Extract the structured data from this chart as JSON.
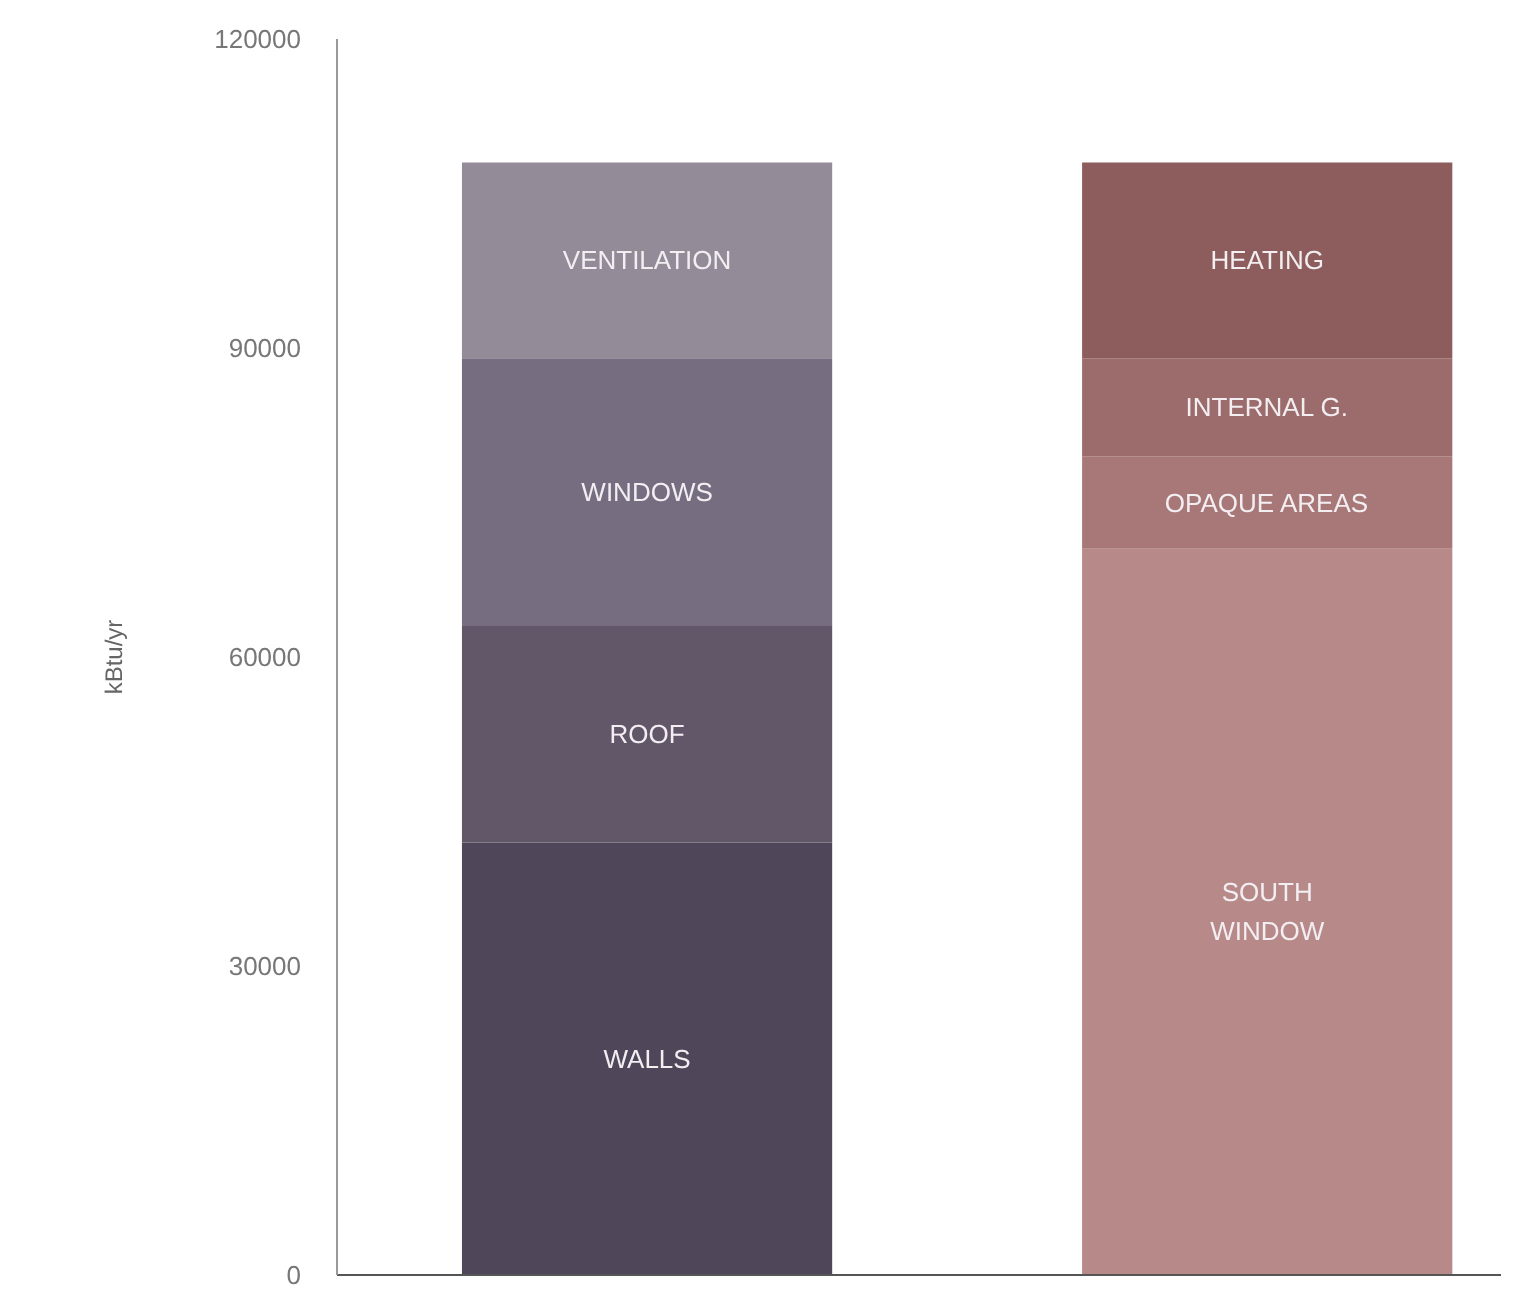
{
  "chart_data": {
    "type": "bar",
    "stacked": true,
    "ylabel": "kBtu/yr",
    "categories": [
      null,
      null
    ],
    "series": [
      {
        "name": "WALLS",
        "color": "#4f4759",
        "values": [
          42000,
          null
        ]
      },
      {
        "name": "ROOF",
        "color": "#615769",
        "values": [
          21000,
          null
        ]
      },
      {
        "name": "WINDOWS",
        "color": "#766e80",
        "values": [
          26000,
          null
        ]
      },
      {
        "name": "VENTILATION",
        "color": "#938b98",
        "values": [
          19000,
          null
        ]
      },
      {
        "name": "SOUTH\nWINDOW",
        "color": "#b78989",
        "values": [
          null,
          70500
        ]
      },
      {
        "name": "OPAQUE AREAS",
        "color": "#a87878",
        "values": [
          null,
          9000
        ]
      },
      {
        "name": "INTERNAL G.",
        "color": "#9c6c6c",
        "values": [
          null,
          9500
        ]
      },
      {
        "name": "HEATING",
        "color": "#8d5c5c",
        "values": [
          null,
          19000
        ]
      }
    ],
    "ylim": [
      0,
      120000
    ],
    "yticks": [
      0,
      30000,
      60000,
      90000,
      120000
    ]
  }
}
